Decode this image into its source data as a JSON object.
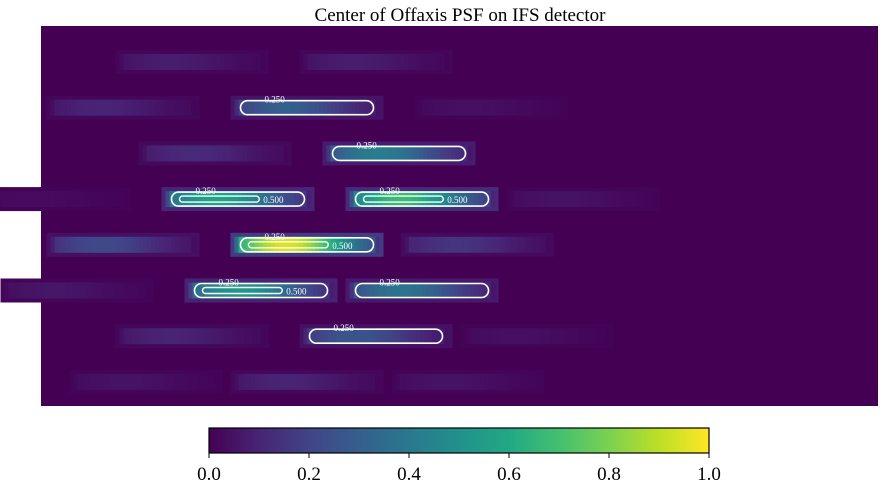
{
  "chart_data": {
    "type": "heatmap",
    "title": "Center of Offaxis PSF on IFS detector",
    "xlabel": "",
    "ylabel": "",
    "colormap": "viridis",
    "background_value": 0.0,
    "colorbar": {
      "orientation": "horizontal",
      "range": [
        0.0,
        1.0
      ],
      "ticks": [
        0.0,
        0.2,
        0.4,
        0.6,
        0.8,
        1.0
      ],
      "tick_labels": [
        "0.0",
        "0.2",
        "0.4",
        "0.6",
        "0.8",
        "1.0"
      ]
    },
    "contour_levels": [
      0.25,
      0.5
    ],
    "contour_labels": [
      "0.250",
      "0.500"
    ],
    "spectra": [
      {
        "row": 1,
        "col": 0.2,
        "peak": 0.08
      },
      {
        "row": 1,
        "col": 0.6,
        "peak": 0.08
      },
      {
        "row": 2,
        "col": 0.05,
        "peak": 0.1
      },
      {
        "row": 2,
        "col": 0.45,
        "peak": 0.3,
        "contour": "0.250"
      },
      {
        "row": 2,
        "col": 0.85,
        "peak": 0.04
      },
      {
        "row": 3,
        "col": 0.25,
        "peak": 0.12
      },
      {
        "row": 3,
        "col": 0.65,
        "peak": 0.42,
        "contour": "0.500"
      },
      {
        "row": 4,
        "col": -0.1,
        "peak": 0.03
      },
      {
        "row": 4,
        "col": 0.3,
        "peak": 0.58,
        "contour": "0.500"
      },
      {
        "row": 4,
        "col": 0.7,
        "peak": 0.68,
        "contour": "0.500"
      },
      {
        "row": 4,
        "col": 1.05,
        "peak": 0.05
      },
      {
        "row": 5,
        "col": 0.05,
        "peak": 0.22,
        "contour": "0.250"
      },
      {
        "row": 5,
        "col": 0.45,
        "peak": 0.95,
        "contour": "0.500"
      },
      {
        "row": 5,
        "col": 0.82,
        "peak": 0.15
      },
      {
        "row": 6,
        "col": -0.05,
        "peak": 0.06
      },
      {
        "row": 6,
        "col": 0.35,
        "peak": 0.52,
        "contour": "0.500"
      },
      {
        "row": 6,
        "col": 0.7,
        "peak": 0.38,
        "contour": "0.250"
      },
      {
        "row": 7,
        "col": 0.2,
        "peak": 0.1
      },
      {
        "row": 7,
        "col": 0.6,
        "peak": 0.26,
        "contour": "0.250"
      },
      {
        "row": 7,
        "col": 0.95,
        "peak": 0.04
      },
      {
        "row": 8,
        "col": 0.1,
        "peak": 0.05
      },
      {
        "row": 8,
        "col": 0.45,
        "peak": 0.1
      },
      {
        "row": 8,
        "col": 0.8,
        "peak": 0.05
      }
    ]
  }
}
